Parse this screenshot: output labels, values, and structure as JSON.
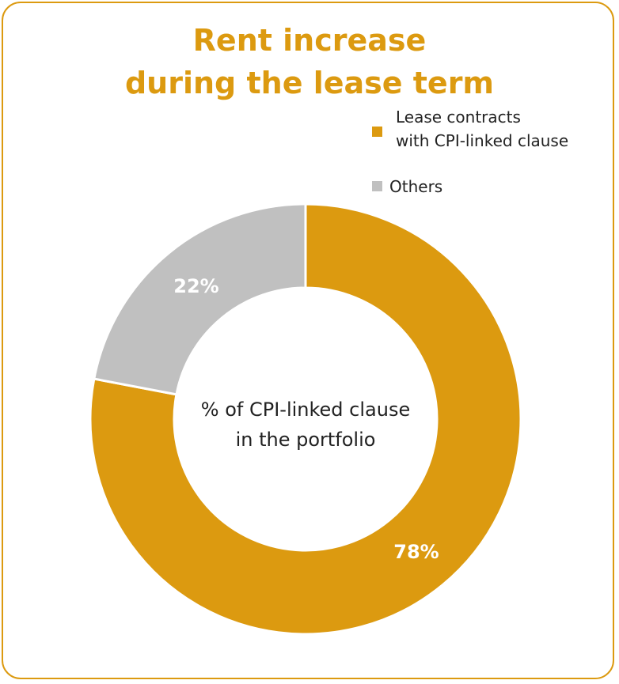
{
  "chart_data": {
    "type": "pie",
    "style": "donut",
    "title_lines": [
      "Rent increase",
      "during the lease term"
    ],
    "center_label_lines": [
      "% of CPI-linked clause",
      "in the portfolio"
    ],
    "slices": [
      {
        "name_lines": [
          "Lease contracts",
          "with CPI-linked clause"
        ],
        "value": 78,
        "label": "78%",
        "color": "#dc9a10"
      },
      {
        "name_lines": [
          "Others"
        ],
        "value": 22,
        "label": "22%",
        "color": "#c0c0c0"
      }
    ]
  }
}
